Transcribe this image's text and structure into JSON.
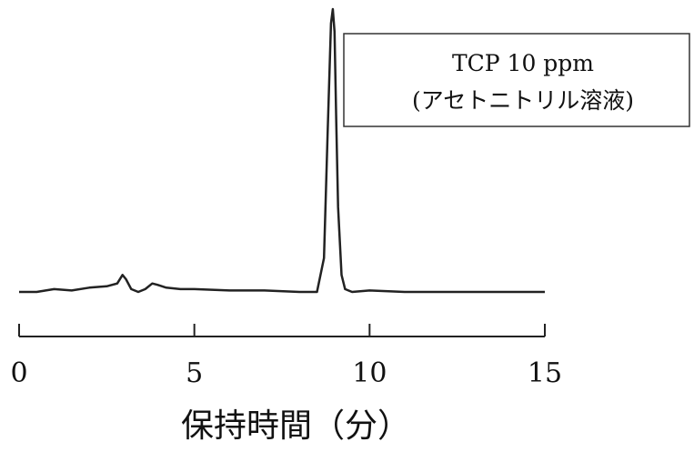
{
  "chart_data": {
    "type": "line",
    "title": "",
    "xlabel": "保持時間（分）",
    "ylabel": "",
    "xlim": [
      0,
      15
    ],
    "x_ticks": [
      0,
      5,
      10,
      15
    ],
    "tick_labels": [
      "0",
      "5",
      "10",
      "15"
    ],
    "grid": false,
    "legend": {
      "placement": "top-right",
      "lines": [
        "TCP 10 ppm",
        "(アセトニトリル溶液)"
      ]
    },
    "series": [
      {
        "x": [
          0.0,
          0.5,
          1.0,
          1.5,
          2.0,
          2.5,
          2.8,
          2.95,
          3.05,
          3.2,
          3.4,
          3.6,
          3.8,
          3.95,
          4.2,
          4.6,
          5.0,
          6.0,
          7.0,
          8.0,
          8.5,
          8.7,
          8.8,
          8.9,
          8.95,
          9.0,
          9.05,
          9.1,
          9.2,
          9.3,
          9.5,
          10.0,
          11.0,
          12.0,
          13.0,
          14.0,
          15.0
        ],
        "y": [
          0.0,
          0.0,
          0.01,
          0.005,
          0.015,
          0.02,
          0.03,
          0.06,
          0.045,
          0.01,
          0.0,
          0.01,
          0.03,
          0.025,
          0.015,
          0.01,
          0.01,
          0.005,
          0.005,
          0.0,
          0.0,
          0.12,
          0.55,
          0.95,
          1.0,
          0.92,
          0.6,
          0.3,
          0.06,
          0.01,
          0.0,
          0.005,
          0.0,
          0.0,
          0.0,
          0.0,
          0.0
        ]
      }
    ]
  }
}
